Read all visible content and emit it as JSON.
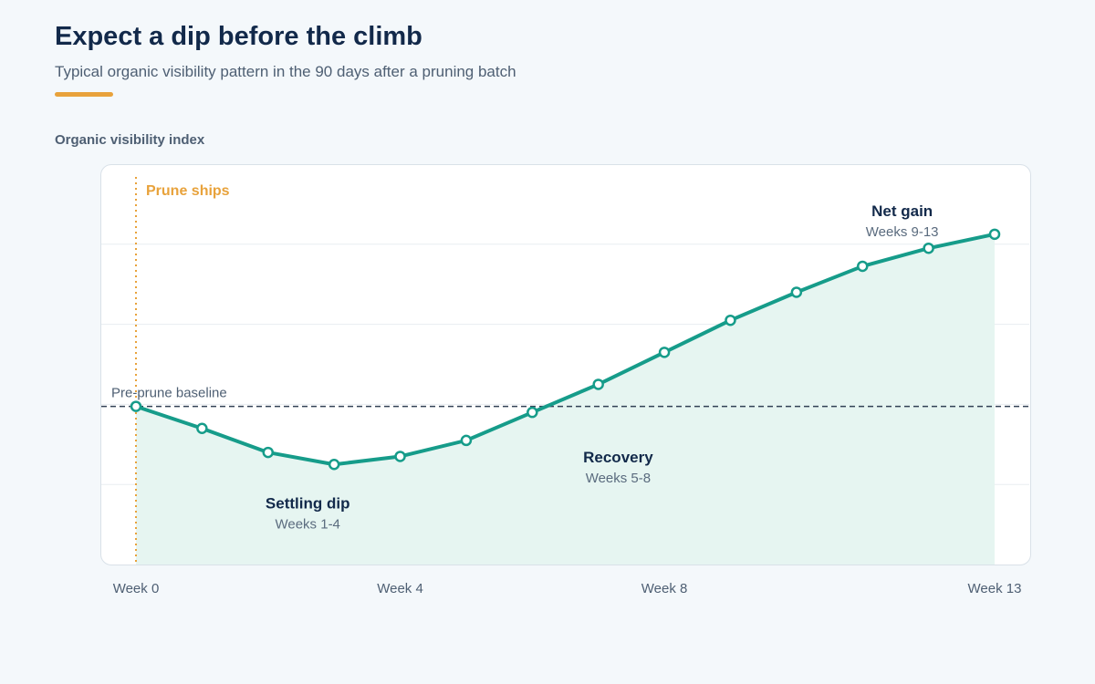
{
  "header": {
    "title": "Expect a dip before the climb",
    "subtitle": "Typical organic visibility pattern in the 90 days after a pruning batch"
  },
  "colors": {
    "accent": "#e8a23b",
    "line": "#169c8a",
    "area": "#e6f5f1",
    "baseline": "#334155",
    "title": "#12294a"
  },
  "chart_data": {
    "type": "line",
    "title": "Expect a dip before the climb",
    "subtitle": "Typical organic visibility pattern in the 90 days after a pruning batch",
    "ylabel": "Organic visibility index",
    "xlabel": "",
    "xlim": [
      0,
      13
    ],
    "ylim": [
      0,
      100
    ],
    "y_ticks_shown": false,
    "grid": "horizontal",
    "x_ticks": [
      {
        "value": 0,
        "label": "Week 0"
      },
      {
        "value": 4,
        "label": "Week 4"
      },
      {
        "value": 8,
        "label": "Week 8"
      },
      {
        "value": 13,
        "label": "Week 13"
      }
    ],
    "series": [
      {
        "x": [
          0,
          1,
          2,
          3,
          4,
          5,
          6,
          7,
          8,
          9,
          10,
          11,
          12,
          13
        ],
        "y": [
          39.5,
          34,
          28,
          25,
          27,
          31,
          38,
          45,
          53,
          61,
          68,
          74.5,
          79,
          82.5
        ]
      }
    ],
    "baseline": {
      "value": 39.5,
      "label": "Pre-prune baseline"
    },
    "event_marker": {
      "x": 0,
      "label": "Prune ships"
    },
    "phases": [
      {
        "title": "Settling dip",
        "range": "Weeks 1-4",
        "x": 2.6,
        "y": 14
      },
      {
        "title": "Recovery",
        "range": "Weeks 5-8",
        "x": 7.3,
        "y": 25.5
      },
      {
        "title": "Net gain",
        "range": "Weeks 9-13",
        "x": 11.6,
        "y": 87
      }
    ]
  }
}
